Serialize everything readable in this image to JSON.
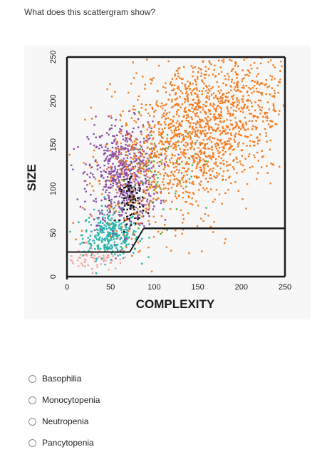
{
  "question": {
    "text": "What does this scattergram show?"
  },
  "chart_data": {
    "type": "scatter",
    "xlabel": "COMPLEXITY",
    "ylabel": "SIZE",
    "xlim": [
      0,
      250
    ],
    "ylim": [
      0,
      250
    ],
    "x_ticks": [
      "0",
      "50",
      "100",
      "150",
      "200",
      "250"
    ],
    "y_ticks": [
      "0",
      "50",
      "100",
      "150",
      "200",
      "250"
    ],
    "populations": [
      {
        "color": "#f4a3a0",
        "center": [
          35,
          20
        ],
        "spread": [
          18,
          6
        ],
        "count": 70
      },
      {
        "color": "#27b5ad",
        "center": [
          50,
          48
        ],
        "spread": [
          16,
          13
        ],
        "count": 320
      },
      {
        "color": "#8b4fa4",
        "center": [
          65,
          115
        ],
        "spread": [
          20,
          30
        ],
        "count": 650
      },
      {
        "color": "#111111",
        "center": [
          75,
          85
        ],
        "spread": [
          7,
          12
        ],
        "count": 90
      },
      {
        "color": "#4caf50",
        "center": [
          110,
          120
        ],
        "spread": [
          25,
          30
        ],
        "count": 70
      },
      {
        "color": "#f47c20",
        "center": [
          150,
          165
        ],
        "spread": [
          50,
          45
        ],
        "count": 1700
      }
    ],
    "gate_lines": {
      "color": "#1a1a1a"
    }
  },
  "answer_options": [
    {
      "label": "Basophilia"
    },
    {
      "label": "Monocytopenia"
    },
    {
      "label": "Neutropenia"
    },
    {
      "label": "Pancytopenia"
    }
  ]
}
